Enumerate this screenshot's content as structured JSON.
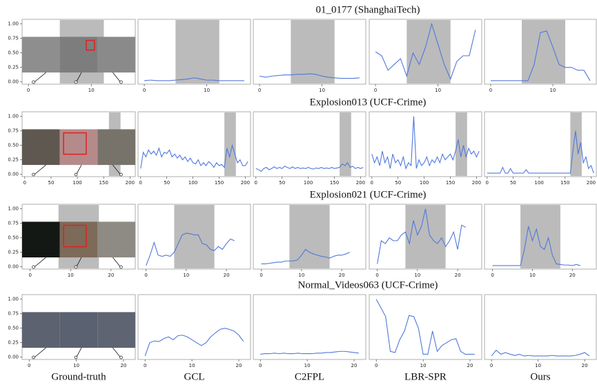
{
  "columns": [
    "Ground-truth",
    "GCL",
    "C2FPL",
    "LBR-SPR",
    "Ours"
  ],
  "chart_data": [
    {
      "type": "line",
      "title": "01_0177 (ShanghaiTech)",
      "color": "#4f78dc",
      "span_color": "#b4b4b4",
      "xlim": [
        -1,
        17
      ],
      "xticks": [
        0,
        10
      ],
      "ylim": [
        -0.04,
        1.08
      ],
      "yticks": [
        {
          "value": 0,
          "label": "0.00"
        },
        {
          "value": 0.25,
          "label": "0.25"
        },
        {
          "value": 0.5,
          "label": "0.50"
        },
        {
          "value": 0.75,
          "label": "0.75"
        },
        {
          "value": 1,
          "label": "1.00"
        }
      ],
      "anomaly_span": [
        5,
        12
      ],
      "x": [
        0,
        1,
        2,
        3,
        4,
        5,
        6,
        7,
        8,
        9,
        10,
        11,
        12,
        13,
        14,
        15,
        16
      ],
      "series": [
        {
          "values": [
            0.02,
            0.03,
            0.02,
            0.02,
            0.02,
            0.03,
            0.04,
            0.05,
            0.07,
            0.05,
            0.03,
            0.03,
            0.02,
            0.02,
            0.02,
            0.02,
            0.02
          ]
        },
        {
          "values": [
            0.1,
            0.08,
            0.1,
            0.11,
            0.12,
            0.12,
            0.13,
            0.13,
            0.14,
            0.13,
            0.1,
            0.08,
            0.07,
            0.06,
            0.06,
            0.06,
            0.07
          ]
        },
        {
          "values": [
            0.52,
            0.45,
            0.2,
            0.3,
            0.4,
            0.1,
            0.5,
            0.3,
            0.6,
            1.0,
            0.65,
            0.3,
            0.05,
            0.35,
            0.45,
            0.45,
            0.9
          ]
        },
        {
          "values": [
            0.02,
            0.02,
            0.02,
            0.02,
            0.02,
            0.02,
            0.02,
            0.3,
            0.85,
            0.88,
            0.6,
            0.3,
            0.25,
            0.25,
            0.2,
            0.2,
            0.02
          ]
        }
      ]
    },
    {
      "type": "line",
      "title": "Explosion013 (UCF-Crime)",
      "color": "#4f78dc",
      "span_color": "#b4b4b4",
      "xlim": [
        -5,
        210
      ],
      "xticks": [
        0,
        50,
        100,
        150,
        200
      ],
      "ylim": [
        -0.04,
        1.08
      ],
      "yticks": [
        {
          "value": 0,
          "label": "0.00"
        },
        {
          "value": 0.25,
          "label": "0.25"
        },
        {
          "value": 0.5,
          "label": "0.50"
        },
        {
          "value": 0.75,
          "label": "0.75"
        },
        {
          "value": 1,
          "label": "1.00"
        }
      ],
      "anomaly_span": [
        160,
        182
      ],
      "x": [
        0,
        5,
        10,
        15,
        20,
        25,
        30,
        35,
        40,
        45,
        50,
        55,
        60,
        65,
        70,
        75,
        80,
        85,
        90,
        95,
        100,
        105,
        110,
        115,
        120,
        125,
        130,
        135,
        140,
        145,
        150,
        155,
        160,
        165,
        170,
        175,
        180,
        185,
        190,
        195,
        200,
        205
      ],
      "series": [
        {
          "values": [
            0.1,
            0.38,
            0.3,
            0.42,
            0.35,
            0.4,
            0.33,
            0.45,
            0.3,
            0.38,
            0.36,
            0.42,
            0.3,
            0.35,
            0.28,
            0.33,
            0.25,
            0.3,
            0.22,
            0.28,
            0.2,
            0.18,
            0.25,
            0.15,
            0.2,
            0.15,
            0.22,
            0.18,
            0.12,
            0.2,
            0.15,
            0.17,
            0.12,
            0.45,
            0.3,
            0.5,
            0.35,
            0.2,
            0.25,
            0.15,
            0.15,
            0.22
          ]
        },
        {
          "values": [
            0.1,
            0.08,
            0.05,
            0.1,
            0.12,
            0.08,
            0.1,
            0.13,
            0.1,
            0.12,
            0.1,
            0.14,
            0.12,
            0.1,
            0.13,
            0.1,
            0.12,
            0.1,
            0.11,
            0.1,
            0.12,
            0.1,
            0.09,
            0.11,
            0.1,
            0.12,
            0.1,
            0.11,
            0.1,
            0.12,
            0.1,
            0.11,
            0.12,
            0.18,
            0.15,
            0.2,
            0.12,
            0.14,
            0.1,
            0.12,
            0.1,
            0.12
          ]
        },
        {
          "values": [
            0.35,
            0.2,
            0.3,
            0.15,
            0.4,
            0.2,
            0.3,
            0.1,
            0.35,
            0.2,
            0.25,
            0.15,
            0.3,
            0.1,
            0.2,
            0.15,
            1.0,
            0.1,
            0.25,
            0.15,
            0.2,
            0.3,
            0.15,
            0.25,
            0.2,
            0.3,
            0.2,
            0.35,
            0.25,
            0.3,
            0.35,
            0.25,
            0.4,
            0.6,
            0.3,
            0.5,
            0.3,
            0.45,
            0.35,
            0.4,
            0.3,
            0.4
          ]
        },
        {
          "values": [
            0.02,
            0.02,
            0.02,
            0.02,
            0.02,
            0.02,
            0.12,
            0.02,
            0.02,
            0.1,
            0.02,
            0.02,
            0.02,
            0.02,
            0.02,
            0.08,
            0.02,
            0.02,
            0.02,
            0.02,
            0.02,
            0.02,
            0.02,
            0.02,
            0.02,
            0.02,
            0.02,
            0.02,
            0.02,
            0.02,
            0.02,
            0.02,
            0.02,
            0.4,
            0.75,
            0.35,
            0.55,
            0.2,
            0.3,
            0.1,
            0.15,
            0.02
          ]
        }
      ]
    },
    {
      "type": "line",
      "title": "Explosion021 (UCF-Crime)",
      "color": "#4f78dc",
      "span_color": "#b4b4b4",
      "xlim": [
        -2,
        26
      ],
      "xticks": [
        0,
        10,
        20
      ],
      "ylim": [
        -0.04,
        1.08
      ],
      "yticks": [
        {
          "value": 0,
          "label": "0.00"
        },
        {
          "value": 0.25,
          "label": "0.25"
        },
        {
          "value": 0.5,
          "label": "0.50"
        },
        {
          "value": 0.75,
          "label": "0.75"
        },
        {
          "value": 1,
          "label": "1.00"
        }
      ],
      "anomaly_span": [
        7,
        17
      ],
      "x": [
        0,
        1,
        2,
        3,
        4,
        5,
        6,
        7,
        8,
        9,
        10,
        11,
        12,
        13,
        14,
        15,
        16,
        17,
        18,
        19,
        20,
        21,
        22
      ],
      "series": [
        {
          "values": [
            0.02,
            0.2,
            0.42,
            0.2,
            0.18,
            0.2,
            0.18,
            0.25,
            0.4,
            0.55,
            0.58,
            0.57,
            0.55,
            0.55,
            0.4,
            0.38,
            0.3,
            0.28,
            0.35,
            0.3,
            0.4,
            0.48,
            0.45
          ]
        },
        {
          "values": [
            0.05,
            0.05,
            0.06,
            0.07,
            0.08,
            0.08,
            0.1,
            0.1,
            0.1,
            0.12,
            0.2,
            0.3,
            0.25,
            0.22,
            0.2,
            0.18,
            0.17,
            0.15,
            0.18,
            0.2,
            0.2,
            0.22,
            0.25
          ]
        },
        {
          "values": [
            0.05,
            0.45,
            0.4,
            0.5,
            0.45,
            0.45,
            0.55,
            0.6,
            0.4,
            0.8,
            0.55,
            0.7,
            1.0,
            0.55,
            0.45,
            0.4,
            0.5,
            0.35,
            0.45,
            0.6,
            0.3,
            0.72,
            0.68
          ]
        },
        {
          "values": [
            0.02,
            0.02,
            0.02,
            0.02,
            0.02,
            0.02,
            0.02,
            0.02,
            0.3,
            0.7,
            0.45,
            0.65,
            0.35,
            0.3,
            0.5,
            0.2,
            0.05,
            0.04,
            0.03,
            0.03,
            0.02,
            0.04,
            0.02
          ]
        }
      ]
    },
    {
      "type": "line",
      "title": "Normal_Videos063 (UCF-Crime)",
      "color": "#4f78dc",
      "span_color": "#b4b4b4",
      "xlim": [
        -1.5,
        22.5
      ],
      "xticks": [
        0,
        10,
        20
      ],
      "ylim": [
        -0.04,
        1.08
      ],
      "yticks": [
        {
          "value": 0,
          "label": "0.00"
        },
        {
          "value": 0.25,
          "label": "0.25"
        },
        {
          "value": 0.5,
          "label": "0.50"
        },
        {
          "value": 0.75,
          "label": "0.75"
        },
        {
          "value": 1,
          "label": "1.00"
        }
      ],
      "x": [
        0,
        1,
        2,
        3,
        4,
        5,
        6,
        7,
        8,
        9,
        10,
        11,
        12,
        13,
        14,
        15,
        16,
        17,
        18,
        19,
        20,
        21
      ],
      "series": [
        {
          "values": [
            0.02,
            0.25,
            0.28,
            0.27,
            0.32,
            0.35,
            0.3,
            0.37,
            0.38,
            0.35,
            0.3,
            0.25,
            0.2,
            0.25,
            0.35,
            0.42,
            0.48,
            0.5,
            0.48,
            0.45,
            0.38,
            0.27
          ]
        },
        {
          "values": [
            0.05,
            0.06,
            0.06,
            0.07,
            0.06,
            0.07,
            0.06,
            0.06,
            0.07,
            0.06,
            0.06,
            0.06,
            0.07,
            0.07,
            0.08,
            0.08,
            0.09,
            0.1,
            0.1,
            0.09,
            0.08,
            0.07
          ]
        },
        {
          "values": [
            1.0,
            0.85,
            0.7,
            0.1,
            0.08,
            0.3,
            0.45,
            0.72,
            0.7,
            0.5,
            0.05,
            0.05,
            0.45,
            0.1,
            0.2,
            0.25,
            0.3,
            0.32,
            0.1,
            0.05,
            0.05,
            0.05
          ]
        },
        {
          "values": [
            0.02,
            0.12,
            0.05,
            0.08,
            0.05,
            0.03,
            0.05,
            0.02,
            0.03,
            0.02,
            0.02,
            0.02,
            0.02,
            0.03,
            0.02,
            0.02,
            0.02,
            0.02,
            0.03,
            0.05,
            0.08,
            0.02
          ]
        }
      ]
    }
  ]
}
